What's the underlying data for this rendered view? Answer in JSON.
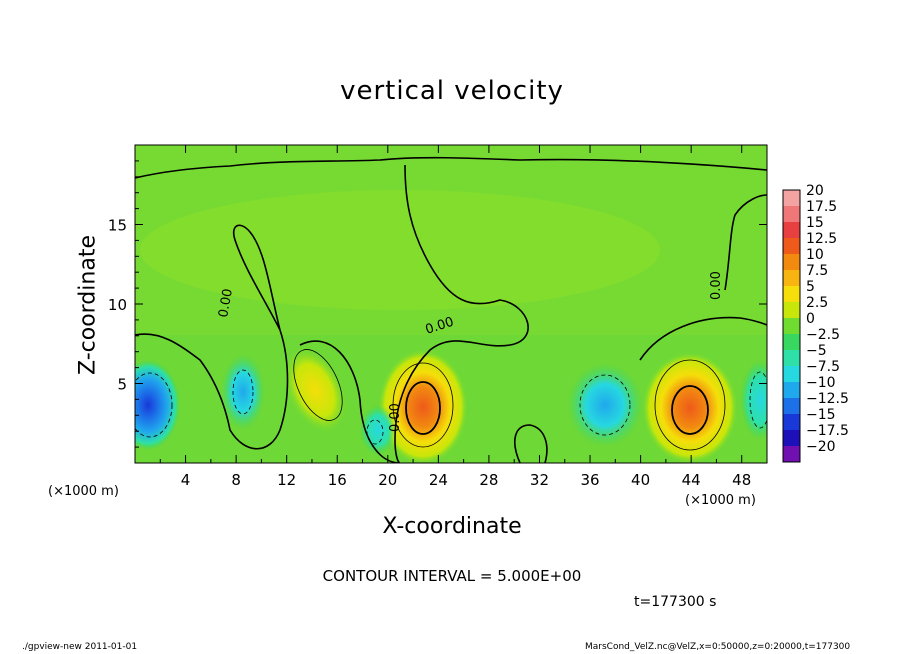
{
  "page": {
    "title": "vertical velocity",
    "contour_interval": "CONTOUR INTERVAL = 5.000E+00",
    "time_label": "t=177300  s",
    "footer_left": "./gpview-new   2011-01-01",
    "footer_right": "MarsCond_VelZ.nc@VelZ,x=0:50000,z=0:20000,t=177300"
  },
  "chart_data": {
    "type": "heatmap",
    "title": "vertical velocity",
    "xlabel": "X-coordinate",
    "ylabel": "Z-coordinate",
    "x_unit": "(×1000 m)",
    "y_unit": "(×1000 m)",
    "xlim": [
      0,
      50
    ],
    "ylim": [
      0,
      20
    ],
    "x_ticks": [
      4,
      8,
      12,
      16,
      20,
      24,
      28,
      32,
      36,
      40,
      44,
      48
    ],
    "y_ticks": [
      5,
      10,
      15
    ],
    "contour_labels": [
      "0.00",
      "0.00",
      "0.00",
      "0.00"
    ],
    "colorbar": {
      "ticks": [
        20,
        17.5,
        15,
        12.5,
        10,
        7.5,
        5,
        2.5,
        0,
        -2.5,
        -5,
        -7.5,
        -10,
        -12.5,
        -15,
        -17.5,
        -20
      ],
      "tick_labels": [
        "20",
        "17.5",
        "15",
        "12.5",
        "10",
        "7.5",
        "5",
        "2.5",
        "0",
        "−2.5",
        "−5",
        "−7.5",
        "−10",
        "−12.5",
        "−15",
        "−17.5",
        "−20"
      ],
      "colors": [
        "#f4a3a3",
        "#ef7777",
        "#e84040",
        "#ee5a1a",
        "#f28a10",
        "#f8b410",
        "#f5de0a",
        "#c8e60a",
        "#70dc30",
        "#38d860",
        "#2ee0a8",
        "#26d8e0",
        "#20a8ec",
        "#1c70e8",
        "#1838d8",
        "#1e10b8",
        "#7010b0"
      ]
    },
    "features": [
      {
        "kind": "updraft",
        "x": 22.8,
        "z": 3.5,
        "max": 12.5
      },
      {
        "kind": "updraft",
        "x": 43.5,
        "z": 3.3,
        "max": 12.5
      },
      {
        "kind": "updraft",
        "x": 13.2,
        "z": 5.0,
        "max": 5
      },
      {
        "kind": "downdraft",
        "x": 0.8,
        "z": 4.2,
        "min": -12.5
      },
      {
        "kind": "downdraft",
        "x": 8.5,
        "z": 4.8,
        "min": -7.5
      },
      {
        "kind": "downdraft",
        "x": 37.5,
        "z": 3.5,
        "min": -7.5
      },
      {
        "kind": "downdraft",
        "x": 48.5,
        "z": 4.0,
        "min": -5
      }
    ]
  }
}
